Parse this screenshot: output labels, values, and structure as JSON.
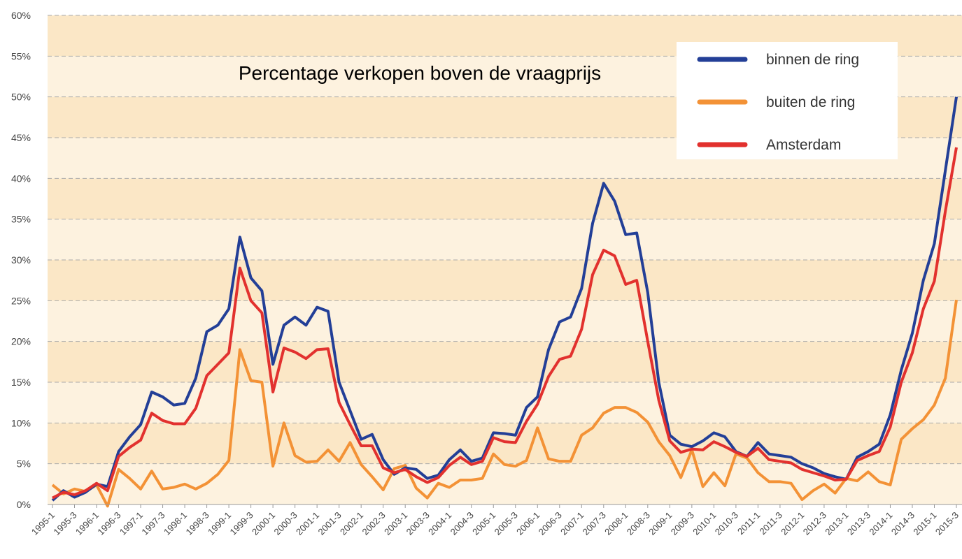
{
  "chart_data": {
    "type": "line",
    "title": "Percentage verkopen boven de vraagprijs",
    "categories": [
      "1995-1",
      null,
      "1995-3",
      null,
      "1996-1",
      null,
      "1996-3",
      null,
      "1997-1",
      null,
      "1997-3",
      null,
      "1998-1",
      null,
      "1998-3",
      null,
      "1999-1",
      null,
      "1999-3",
      null,
      "2000-1",
      null,
      "2000-3",
      null,
      "2001-1",
      null,
      "2001-3",
      null,
      "2002-1",
      null,
      "2002-3",
      null,
      "2003-1",
      null,
      "2003-3",
      null,
      "2004-1",
      null,
      "2004-3",
      null,
      "2005-1",
      null,
      "2005-3",
      null,
      "2006-1",
      null,
      "2006-3",
      null,
      "2007-1",
      null,
      "2007-3",
      null,
      "2008-1",
      null,
      "2008-3",
      null,
      "2009-1",
      null,
      "2009-3",
      null,
      "2010-1",
      null,
      "2010-3",
      null,
      "2011-1",
      null,
      "2011-3",
      null,
      "2012-1",
      null,
      "2012-3",
      null,
      "2013-1",
      null,
      "2013-3",
      null,
      "2014-1",
      null,
      "2014-3",
      null,
      "2015-1",
      null,
      "2015-3"
    ],
    "series": [
      {
        "name": "binnen de ring",
        "color": "#233f97",
        "values": [
          0.5,
          1.7,
          0.9,
          1.5,
          2.5,
          2.2,
          6.5,
          8.3,
          9.8,
          13.8,
          13.2,
          12.2,
          12.4,
          15.5,
          21.2,
          22,
          24,
          32.8,
          27.8,
          26.2,
          17.2,
          22,
          23,
          22,
          24.2,
          23.7,
          15,
          11.5,
          8,
          8.6,
          5.5,
          3.7,
          4.5,
          4.3,
          3.2,
          3.6,
          5.5,
          6.7,
          5.3,
          5.7,
          8.8,
          8.7,
          8.5,
          11.9,
          13.2,
          19,
          22.4,
          23,
          26.5,
          34.5,
          39.4,
          37.2,
          33.1,
          33.3,
          26,
          15,
          8.5,
          7.4,
          7.1,
          7.8,
          8.8,
          8.3,
          6.5,
          5.9,
          7.6,
          6.2,
          6,
          5.8,
          5,
          4.5,
          3.8,
          3.4,
          3.1,
          5.8,
          6.5,
          7.4,
          11,
          16.5,
          21,
          27.5,
          32,
          41,
          50
        ]
      },
      {
        "name": "buiten de ring",
        "color": "#f39236",
        "values": [
          2.4,
          1.3,
          1.9,
          1.6,
          2.4,
          -0.2,
          4.3,
          3.2,
          1.9,
          4.1,
          1.9,
          2.1,
          2.5,
          1.9,
          2.6,
          3.7,
          5.4,
          19,
          15.2,
          15,
          4.7,
          10,
          6,
          5.2,
          5.3,
          6.7,
          5.3,
          7.6,
          4.9,
          3.4,
          1.8,
          4.4,
          4.8,
          2,
          0.8,
          2.6,
          2.1,
          3,
          3,
          3.2,
          6.2,
          4.9,
          4.7,
          5.4,
          9.4,
          5.6,
          5.3,
          5.3,
          8.5,
          9.4,
          11.2,
          11.9,
          11.9,
          11.3,
          10.1,
          7.7,
          6,
          3.3,
          6.7,
          2.2,
          3.9,
          2.3,
          6.2,
          5.7,
          3.9,
          2.8,
          2.8,
          2.6,
          0.6,
          1.7,
          2.5,
          1.4,
          3.2,
          2.9,
          4,
          2.8,
          2.4,
          8,
          9.3,
          10.4,
          12.2,
          15.5,
          25.1
        ]
      },
      {
        "name": "Amsterdam",
        "color": "#e2312e",
        "values": [
          0.8,
          1.5,
          1.2,
          1.7,
          2.6,
          1.7,
          5.9,
          7,
          7.9,
          11.2,
          10.3,
          9.9,
          9.9,
          11.8,
          15.8,
          17.2,
          18.6,
          29,
          25,
          23.5,
          13.8,
          19.2,
          18.7,
          17.9,
          19,
          19.1,
          12.5,
          9.8,
          7.2,
          7.2,
          4.5,
          3.9,
          4.3,
          3.4,
          2.7,
          3.3,
          4.8,
          5.8,
          4.9,
          5.3,
          8.2,
          7.7,
          7.6,
          10.2,
          12.3,
          15.7,
          17.8,
          18.2,
          21.5,
          28.2,
          31.2,
          30.5,
          27,
          27.5,
          20,
          12.8,
          7.8,
          6.4,
          6.8,
          6.7,
          7.7,
          7.1,
          6.4,
          5.9,
          6.9,
          5.5,
          5.3,
          5.1,
          4.3,
          3.9,
          3.5,
          3,
          3.1,
          5.4,
          6,
          6.5,
          9.5,
          15,
          18.6,
          24,
          27.4,
          36,
          43.8
        ]
      }
    ],
    "ylim": [
      0,
      60
    ],
    "yticks": [
      {
        "value": 0,
        "label": "0%"
      },
      {
        "value": 5,
        "label": "5%"
      },
      {
        "value": 10,
        "label": "10%"
      },
      {
        "value": 15,
        "label": "15%"
      },
      {
        "value": 20,
        "label": "20%"
      },
      {
        "value": 25,
        "label": "25%"
      },
      {
        "value": 30,
        "label": "30%"
      },
      {
        "value": 35,
        "label": "35%"
      },
      {
        "value": 40,
        "label": "40%"
      },
      {
        "value": 45,
        "label": "45%"
      },
      {
        "value": 50,
        "label": "50%"
      },
      {
        "value": 55,
        "label": "55%"
      },
      {
        "value": 60,
        "label": "60%"
      }
    ],
    "grid": true,
    "legend": "upper right"
  }
}
